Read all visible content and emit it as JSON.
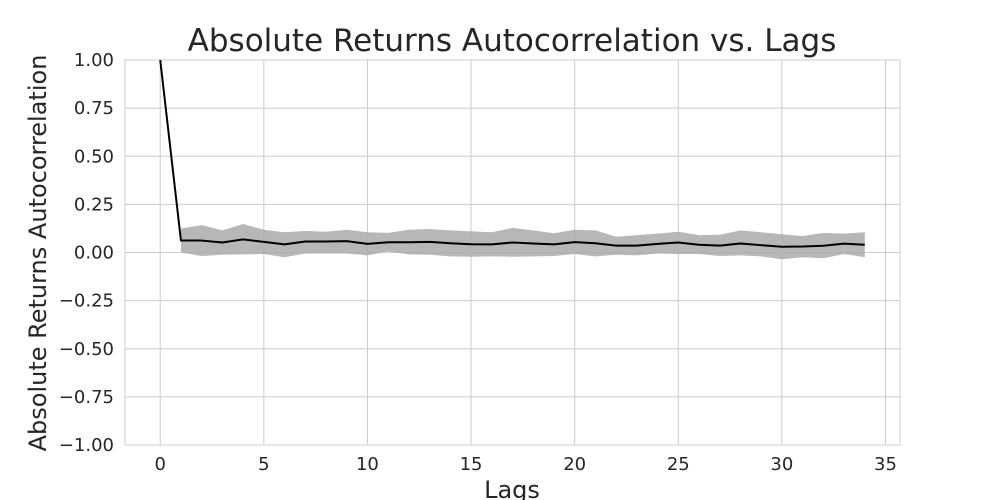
{
  "chart_data": {
    "type": "line",
    "title": "Absolute Returns Autocorrelation vs. Lags",
    "xlabel": "Lags",
    "ylabel": "Absolute Returns Autocorrelation",
    "xlim": [
      -1.7,
      35.7
    ],
    "ylim": [
      -1.0,
      1.0
    ],
    "xticks": [
      "0",
      "5",
      "10",
      "15",
      "20",
      "25",
      "30",
      "35"
    ],
    "yticks": [
      "−1.00",
      "−0.75",
      "−0.50",
      "−0.25",
      "0.00",
      "0.25",
      "0.50",
      "0.75",
      "1.00"
    ],
    "grid": true,
    "colors": {
      "line": "#000000",
      "band": "#aaaaaa"
    },
    "series": [
      {
        "x": [
          0,
          1,
          2,
          3,
          4,
          5,
          6,
          7,
          8,
          9,
          10,
          11,
          12,
          13,
          14,
          15,
          16,
          17,
          18,
          19,
          20,
          21,
          22,
          23,
          24,
          25,
          26,
          27,
          28,
          29,
          30,
          31,
          32,
          33,
          34
        ],
        "values": [
          1.0,
          0.062,
          0.062,
          0.052,
          0.068,
          0.055,
          0.042,
          0.057,
          0.057,
          0.059,
          0.045,
          0.053,
          0.053,
          0.055,
          0.048,
          0.043,
          0.042,
          0.052,
          0.047,
          0.042,
          0.054,
          0.048,
          0.036,
          0.036,
          0.045,
          0.052,
          0.04,
          0.036,
          0.047,
          0.038,
          0.03,
          0.031,
          0.035,
          0.046,
          0.04
        ],
        "lower": [
          1.0,
          0.0,
          -0.018,
          -0.012,
          -0.01,
          -0.008,
          -0.025,
          -0.005,
          -0.005,
          -0.005,
          -0.015,
          0.005,
          -0.01,
          -0.012,
          -0.02,
          -0.022,
          -0.02,
          -0.022,
          -0.02,
          -0.018,
          -0.008,
          -0.02,
          -0.012,
          -0.015,
          -0.005,
          -0.008,
          -0.008,
          -0.018,
          -0.015,
          -0.02,
          -0.035,
          -0.025,
          -0.03,
          -0.008,
          -0.025
        ],
        "upper": [
          1.0,
          0.125,
          0.142,
          0.115,
          0.148,
          0.118,
          0.105,
          0.112,
          0.108,
          0.118,
          0.105,
          0.102,
          0.118,
          0.122,
          0.115,
          0.11,
          0.105,
          0.128,
          0.115,
          0.1,
          0.118,
          0.115,
          0.082,
          0.09,
          0.098,
          0.108,
          0.09,
          0.092,
          0.115,
          0.105,
          0.095,
          0.085,
          0.102,
          0.098,
          0.105
        ]
      }
    ]
  }
}
